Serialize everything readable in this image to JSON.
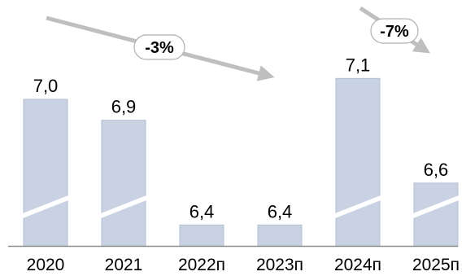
{
  "chart_data": {
    "type": "bar",
    "categories": [
      "2020",
      "2021",
      "2022п",
      "2023п",
      "2024п",
      "2025п"
    ],
    "values": [
      7.0,
      6.9,
      6.4,
      6.4,
      7.1,
      6.6
    ],
    "value_labels": [
      "7,0",
      "6,9",
      "6,4",
      "6,4",
      "7,1",
      "6,6"
    ],
    "axis_break": true,
    "annotations": [
      {
        "label": "-3%",
        "from": "2020",
        "to": "2023п"
      },
      {
        "label": "-7%",
        "from": "2024п",
        "to": "2025п"
      }
    ],
    "colors": {
      "bar": "#c8d2e2",
      "bar_edge": "#b4bfd2",
      "axis": "#8c8c8c",
      "trend_arrow": "#bfbfbf",
      "trend_label_fill": "#ffffff",
      "trend_label_edge": "#b0b0b0"
    }
  }
}
